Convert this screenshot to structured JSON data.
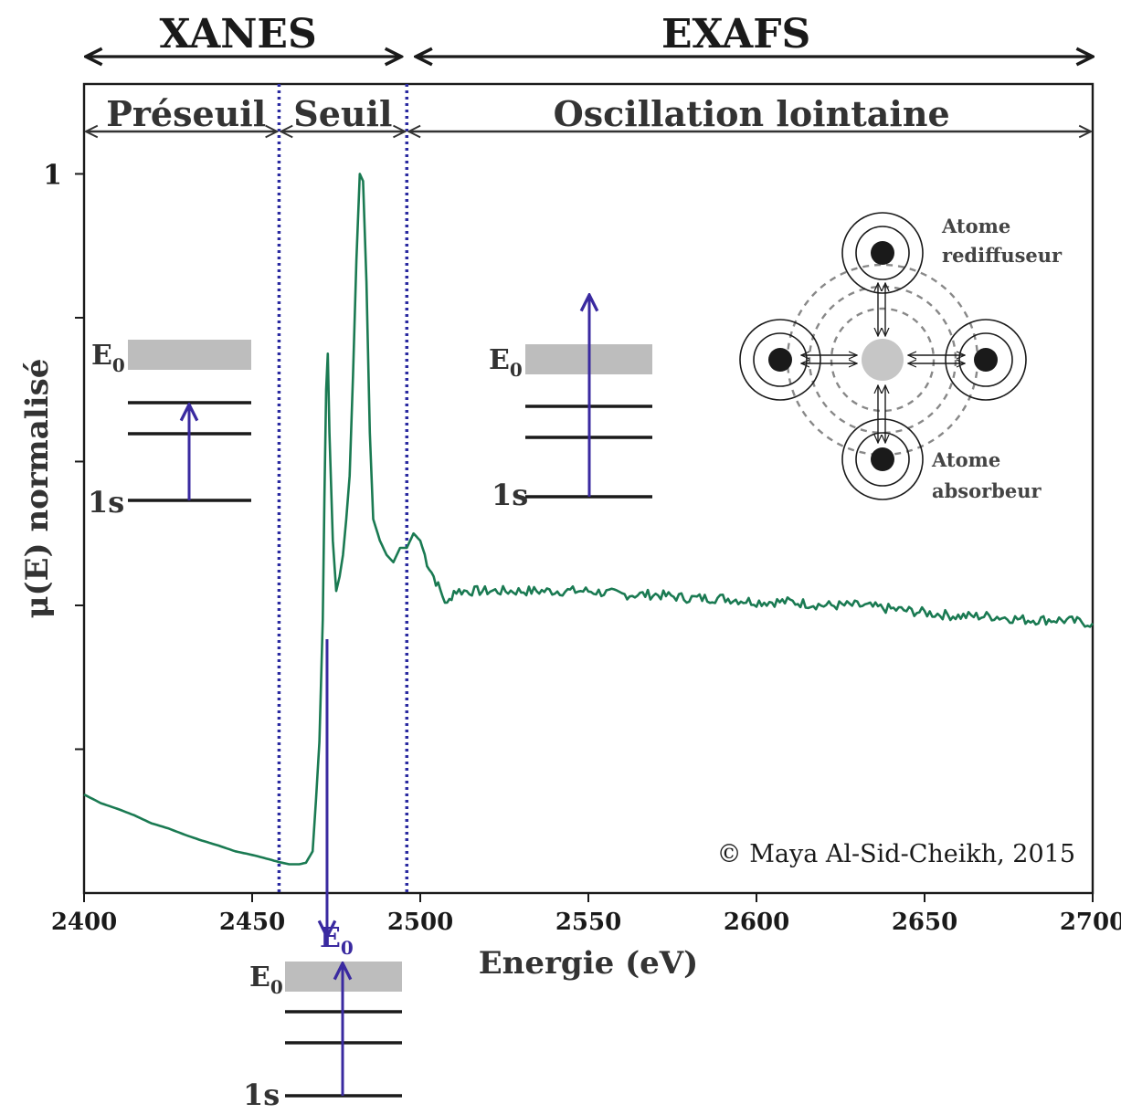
{
  "chart_data": {
    "type": "line",
    "xlabel": "Energie (eV)",
    "ylabel": "μ(E) normalisé",
    "xlim": [
      2400,
      2700
    ],
    "ylim": [
      0,
      1.125
    ],
    "x_ticks": [
      2400,
      2450,
      2500,
      2550,
      2600,
      2650,
      2700
    ],
    "x_tick_labels": [
      "2400",
      "2450",
      "2500",
      "2550",
      "2600",
      "2650",
      "2700"
    ],
    "y_ticks": [
      0.2,
      0.4,
      0.6,
      0.8,
      1.0
    ],
    "y_tick_labels": [
      "",
      "",
      "",
      "",
      "1"
    ],
    "grid": false,
    "line_color": "#1a7a52",
    "series": [
      {
        "x": [
          2400,
          2405,
          2410,
          2415,
          2420,
          2425,
          2430,
          2435,
          2440,
          2445,
          2450,
          2455,
          2458,
          2461,
          2464,
          2466,
          2468,
          2469,
          2470,
          2471,
          2471.5,
          2472,
          2472.5,
          2473,
          2474,
          2475,
          2476,
          2477,
          2478,
          2479,
          2480,
          2481,
          2482,
          2482.5,
          2483,
          2484,
          2485,
          2486,
          2488,
          2490,
          2492,
          2494,
          2496,
          2498,
          2500,
          2502,
          2504,
          2506,
          2508,
          2510,
          2520,
          2530,
          2540,
          2550,
          2560,
          2570,
          2580,
          2590,
          2600,
          2610,
          2620,
          2630,
          2640,
          2650,
          2660,
          2670,
          2680,
          2690,
          2700
        ],
        "y": [
          0.137,
          0.125,
          0.117,
          0.108,
          0.097,
          0.09,
          0.081,
          0.073,
          0.066,
          0.058,
          0.053,
          0.047,
          0.043,
          0.04,
          0.04,
          0.042,
          0.058,
          0.13,
          0.21,
          0.38,
          0.55,
          0.7,
          0.75,
          0.64,
          0.49,
          0.42,
          0.44,
          0.47,
          0.52,
          0.58,
          0.72,
          0.88,
          1.0,
          0.995,
          0.99,
          0.85,
          0.64,
          0.52,
          0.49,
          0.47,
          0.46,
          0.48,
          0.48,
          0.5,
          0.49,
          0.46,
          0.44,
          0.42,
          0.4,
          0.42,
          0.42,
          0.42,
          0.42,
          0.42,
          0.415,
          0.415,
          0.41,
          0.41,
          0.405,
          0.405,
          0.4,
          0.4,
          0.395,
          0.39,
          0.385,
          0.385,
          0.38,
          0.38,
          0.375
        ]
      }
    ],
    "markers": [
      {
        "x": 2458,
        "style": "dotted",
        "color": "#2a2aa0"
      },
      {
        "x": 2496,
        "style": "dotted",
        "color": "#2a2aa0"
      }
    ],
    "regions": {
      "top": [
        {
          "label": "XANES",
          "x_start": 2400,
          "x_end": 2496
        },
        {
          "label": "EXAFS",
          "x_start": 2496,
          "x_end": 2700
        }
      ],
      "inner": [
        {
          "label": "Préseuil",
          "x_start": 2400,
          "x_end": 2458
        },
        {
          "label": "Seuil",
          "x_start": 2458,
          "x_end": 2496
        },
        {
          "label": "Oscillation lointaine",
          "x_start": 2496,
          "x_end": 2700
        }
      ]
    },
    "edge_marker": {
      "label": "E",
      "subscript": "0",
      "x": 2472,
      "color": "#3a2aa0"
    },
    "level_diagram_labels": {
      "e0": "E",
      "e0_sub": "0",
      "core": "1s"
    },
    "atom_labels": {
      "scatterer": [
        "Atome",
        "rediffuseur"
      ],
      "absorber": [
        "Atome",
        "absorbeur"
      ]
    },
    "copyright": "© Maya Al-Sid-Cheikh, 2015"
  }
}
